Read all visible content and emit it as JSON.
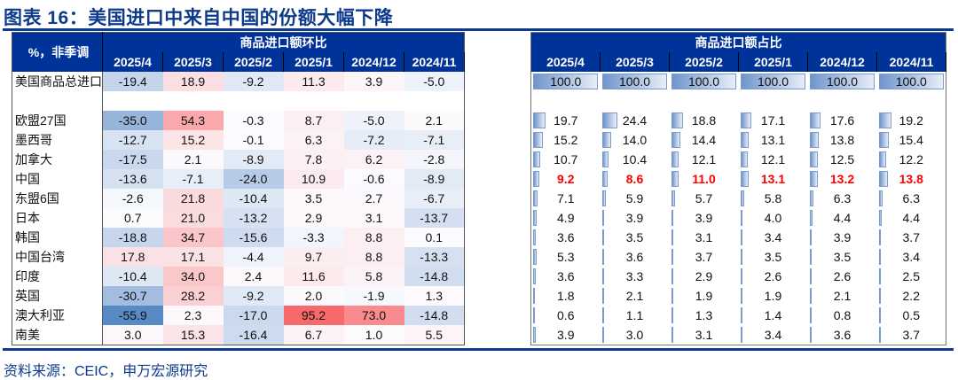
{
  "title": "图表 16：美国进口中来自中国的份额大幅下降",
  "source": "资料来源：CEIC，申万宏源研究",
  "header": {
    "unit": "%，非季调",
    "group_left": "商品进口额环比",
    "group_right": "商品进口额占比",
    "months": [
      "2025/4",
      "2025/3",
      "2025/2",
      "2025/1",
      "2024/12",
      "2024/11"
    ]
  },
  "colors": {
    "header_bg": "#00339a",
    "neg": "#5a8ac6",
    "mid": "#fcfcff",
    "pos": "#f8696b",
    "highlight": "#ff0000"
  },
  "total": {
    "label": "美国商品总进口",
    "mom": [
      "-19.4",
      "18.9",
      "-9.2",
      "11.3",
      "3.9",
      "-5.0"
    ],
    "share": [
      "100.0",
      "100.0",
      "100.0",
      "100.0",
      "100.0",
      "100.0"
    ]
  },
  "rows": [
    {
      "label": "欧盟27国",
      "mom": [
        "-35.0",
        "54.3",
        "-0.3",
        "8.7",
        "-5.0",
        "2.1"
      ],
      "share": [
        "19.7",
        "24.4",
        "18.8",
        "17.1",
        "17.6",
        "19.2"
      ]
    },
    {
      "label": "墨西哥",
      "mom": [
        "-12.7",
        "15.2",
        "-0.1",
        "6.3",
        "-7.2",
        "-7.1"
      ],
      "share": [
        "15.2",
        "14.0",
        "14.4",
        "13.1",
        "13.8",
        "15.4"
      ]
    },
    {
      "label": "加拿大",
      "mom": [
        "-17.5",
        "2.1",
        "-8.9",
        "7.8",
        "6.2",
        "-2.8"
      ],
      "share": [
        "10.7",
        "10.4",
        "12.1",
        "12.1",
        "12.5",
        "12.2"
      ]
    },
    {
      "label": "中国",
      "highlight": true,
      "mom": [
        "-13.6",
        "-7.1",
        "-24.0",
        "10.9",
        "-0.6",
        "-8.9"
      ],
      "share": [
        "9.2",
        "8.6",
        "11.0",
        "13.1",
        "13.2",
        "13.8"
      ]
    },
    {
      "label": "东盟6国",
      "mom": [
        "-2.6",
        "21.8",
        "-10.4",
        "3.5",
        "2.7",
        "-6.7"
      ],
      "share": [
        "7.1",
        "5.9",
        "5.7",
        "5.8",
        "6.3",
        "6.3"
      ]
    },
    {
      "label": "日本",
      "mom": [
        "0.7",
        "21.0",
        "-13.2",
        "2.9",
        "3.1",
        "-13.7"
      ],
      "share": [
        "4.9",
        "3.9",
        "3.9",
        "4.0",
        "4.4",
        "4.4"
      ]
    },
    {
      "label": "韩国",
      "mom": [
        "-18.8",
        "34.7",
        "-15.6",
        "-3.3",
        "8.8",
        "0.1"
      ],
      "share": [
        "3.6",
        "3.5",
        "3.1",
        "3.4",
        "3.9",
        "3.7"
      ]
    },
    {
      "label": "中国台湾",
      "mom": [
        "17.8",
        "17.1",
        "-4.4",
        "9.7",
        "8.8",
        "-13.3"
      ],
      "share": [
        "5.3",
        "3.6",
        "3.7",
        "3.5",
        "3.5",
        "3.4"
      ]
    },
    {
      "label": "印度",
      "mom": [
        "-10.4",
        "34.0",
        "2.4",
        "11.6",
        "5.8",
        "-14.8"
      ],
      "share": [
        "3.6",
        "3.3",
        "2.9",
        "2.6",
        "2.6",
        "2.5"
      ]
    },
    {
      "label": "英国",
      "mom": [
        "-30.7",
        "28.2",
        "-9.2",
        "2.0",
        "-1.9",
        "1.3"
      ],
      "share": [
        "1.8",
        "2.1",
        "1.9",
        "1.9",
        "2.1",
        "2.2"
      ]
    },
    {
      "label": "澳大利亚",
      "mom": [
        "-55.9",
        "2.3",
        "-17.0",
        "95.2",
        "73.0",
        "-14.8"
      ],
      "share": [
        "0.6",
        "1.1",
        "1.3",
        "1.4",
        "0.8",
        "0.5"
      ]
    },
    {
      "label": "南美",
      "mom": [
        "3.0",
        "15.3",
        "-16.4",
        "6.7",
        "1.0",
        "5.5"
      ],
      "share": [
        "3.9",
        "3.0",
        "3.1",
        "3.4",
        "3.6",
        "3.7"
      ]
    }
  ]
}
